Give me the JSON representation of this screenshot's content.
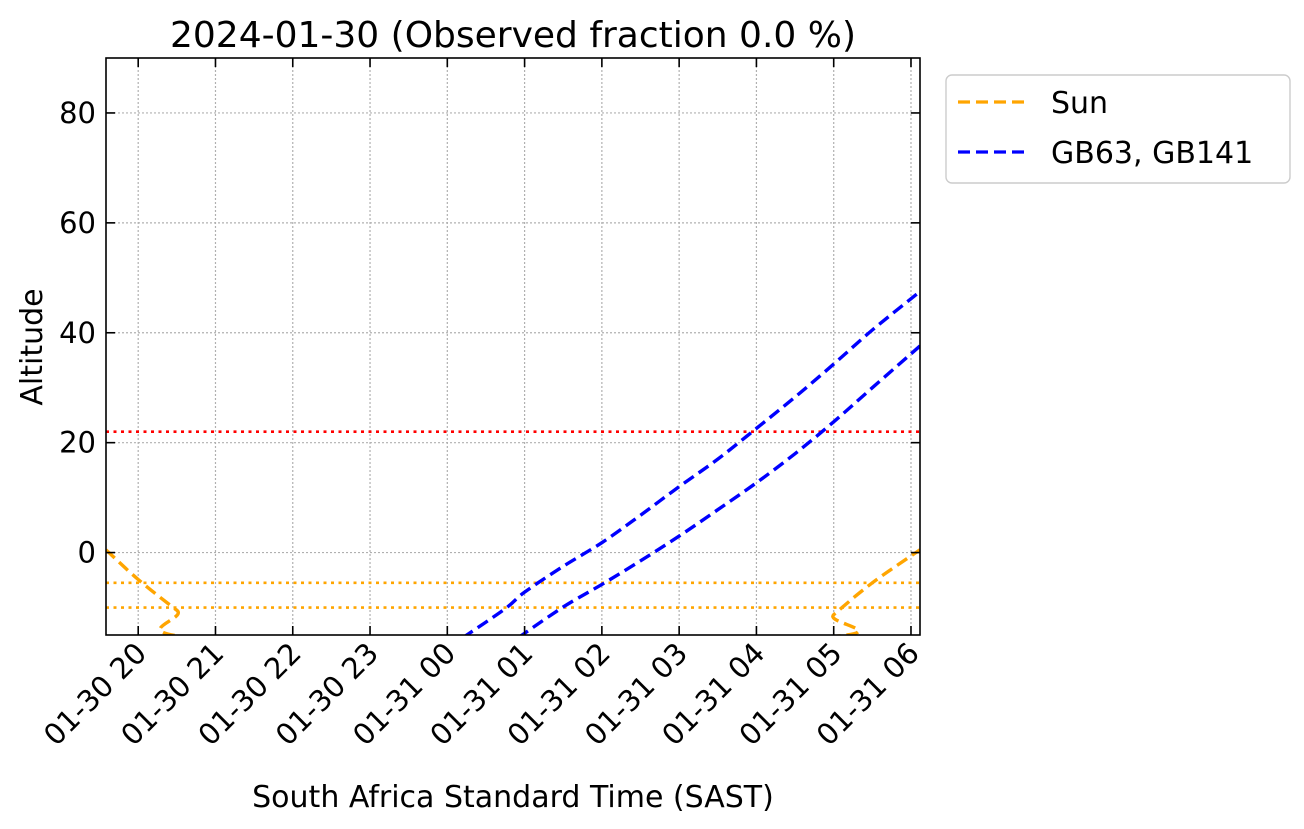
{
  "chart_data": {
    "type": "line",
    "title": "2024-01-30 (Observed fraction 0.0 %)",
    "xlabel": "South Africa Standard Time (SAST)",
    "ylabel": "Altitude",
    "x_type": "time",
    "xlim": [
      "2024-01-30 19:35",
      "2024-01-31 06:07"
    ],
    "ylim": [
      -15,
      90
    ],
    "x_ticks": [
      {
        "at": "2024-01-30 20:00",
        "label": "01-30 20"
      },
      {
        "at": "2024-01-30 21:00",
        "label": "01-30 21"
      },
      {
        "at": "2024-01-30 22:00",
        "label": "01-30 22"
      },
      {
        "at": "2024-01-30 23:00",
        "label": "01-30 23"
      },
      {
        "at": "2024-01-31 00:00",
        "label": "01-31 00"
      },
      {
        "at": "2024-01-31 01:00",
        "label": "01-31 01"
      },
      {
        "at": "2024-01-31 02:00",
        "label": "01-31 02"
      },
      {
        "at": "2024-01-31 03:00",
        "label": "01-31 03"
      },
      {
        "at": "2024-01-31 04:00",
        "label": "01-31 04"
      },
      {
        "at": "2024-01-31 05:00",
        "label": "01-31 05"
      },
      {
        "at": "2024-01-31 06:00",
        "label": "01-31 06"
      }
    ],
    "y_ticks": [
      0,
      20,
      40,
      60,
      80
    ],
    "grid": true,
    "legend_position": "outside-top-right",
    "series": [
      {
        "name": "Sun",
        "color": "#ffa500",
        "style": "dashed",
        "points": [
          {
            "x": "2024-01-30 19:35",
            "y": 0.5
          },
          {
            "x": "2024-01-30 20:00",
            "y": -4.9
          },
          {
            "x": "2024-01-30 20:30",
            "y": -10.5
          },
          {
            "x": "2024-01-30 21:00",
            "y": -15.7
          },
          {
            "x": "2024-01-31 04:40",
            "y": -15.5
          },
          {
            "x": "2024-01-31 05:00",
            "y": -11.3
          },
          {
            "x": "2024-01-31 05:30",
            "y": -5.5
          },
          {
            "x": "2024-01-31 06:07",
            "y": 0.5
          }
        ]
      },
      {
        "name": "GB63, GB141",
        "color": "#0000ff",
        "style": "dashed",
        "points": [
          {
            "x": "2024-01-31 00:12",
            "y": -15.5
          },
          {
            "x": "2024-01-31 00:45",
            "y": -10.2
          },
          {
            "x": "2024-01-31 01:00",
            "y": -7.2
          },
          {
            "x": "2024-01-31 01:30",
            "y": -2.5
          },
          {
            "x": "2024-01-31 02:00",
            "y": 1.8
          },
          {
            "x": "2024-01-31 02:30",
            "y": 6.8
          },
          {
            "x": "2024-01-31 03:00",
            "y": 12.0
          },
          {
            "x": "2024-01-31 03:30",
            "y": 17.0
          },
          {
            "x": "2024-01-31 04:00",
            "y": 22.6
          },
          {
            "x": "2024-01-31 04:30",
            "y": 28.3
          },
          {
            "x": "2024-01-31 05:00",
            "y": 34.3
          },
          {
            "x": "2024-01-31 05:30",
            "y": 40.5
          },
          {
            "x": "2024-01-31 06:07",
            "y": 47.5
          }
        ]
      },
      {
        "name": "",
        "color": "#0000ff",
        "style": "dashed",
        "points": [
          {
            "x": "2024-01-31 00:55",
            "y": -15.5
          },
          {
            "x": "2024-01-31 01:30",
            "y": -9.9
          },
          {
            "x": "2024-01-31 02:00",
            "y": -5.8
          },
          {
            "x": "2024-01-31 02:30",
            "y": -1.5
          },
          {
            "x": "2024-01-31 03:00",
            "y": 3.0
          },
          {
            "x": "2024-01-31 03:30",
            "y": 7.8
          },
          {
            "x": "2024-01-31 04:00",
            "y": 12.7
          },
          {
            "x": "2024-01-31 04:30",
            "y": 18.0
          },
          {
            "x": "2024-01-31 05:00",
            "y": 23.8
          },
          {
            "x": "2024-01-31 05:30",
            "y": 30.0
          },
          {
            "x": "2024-01-31 06:07",
            "y": 37.6
          }
        ]
      }
    ],
    "hlines": [
      {
        "y": 22,
        "color": "#ff0000",
        "style": "dotted"
      },
      {
        "y": -5.5,
        "color": "#ffa500",
        "style": "dotted"
      },
      {
        "y": -10,
        "color": "#ffa500",
        "style": "dotted"
      }
    ]
  }
}
